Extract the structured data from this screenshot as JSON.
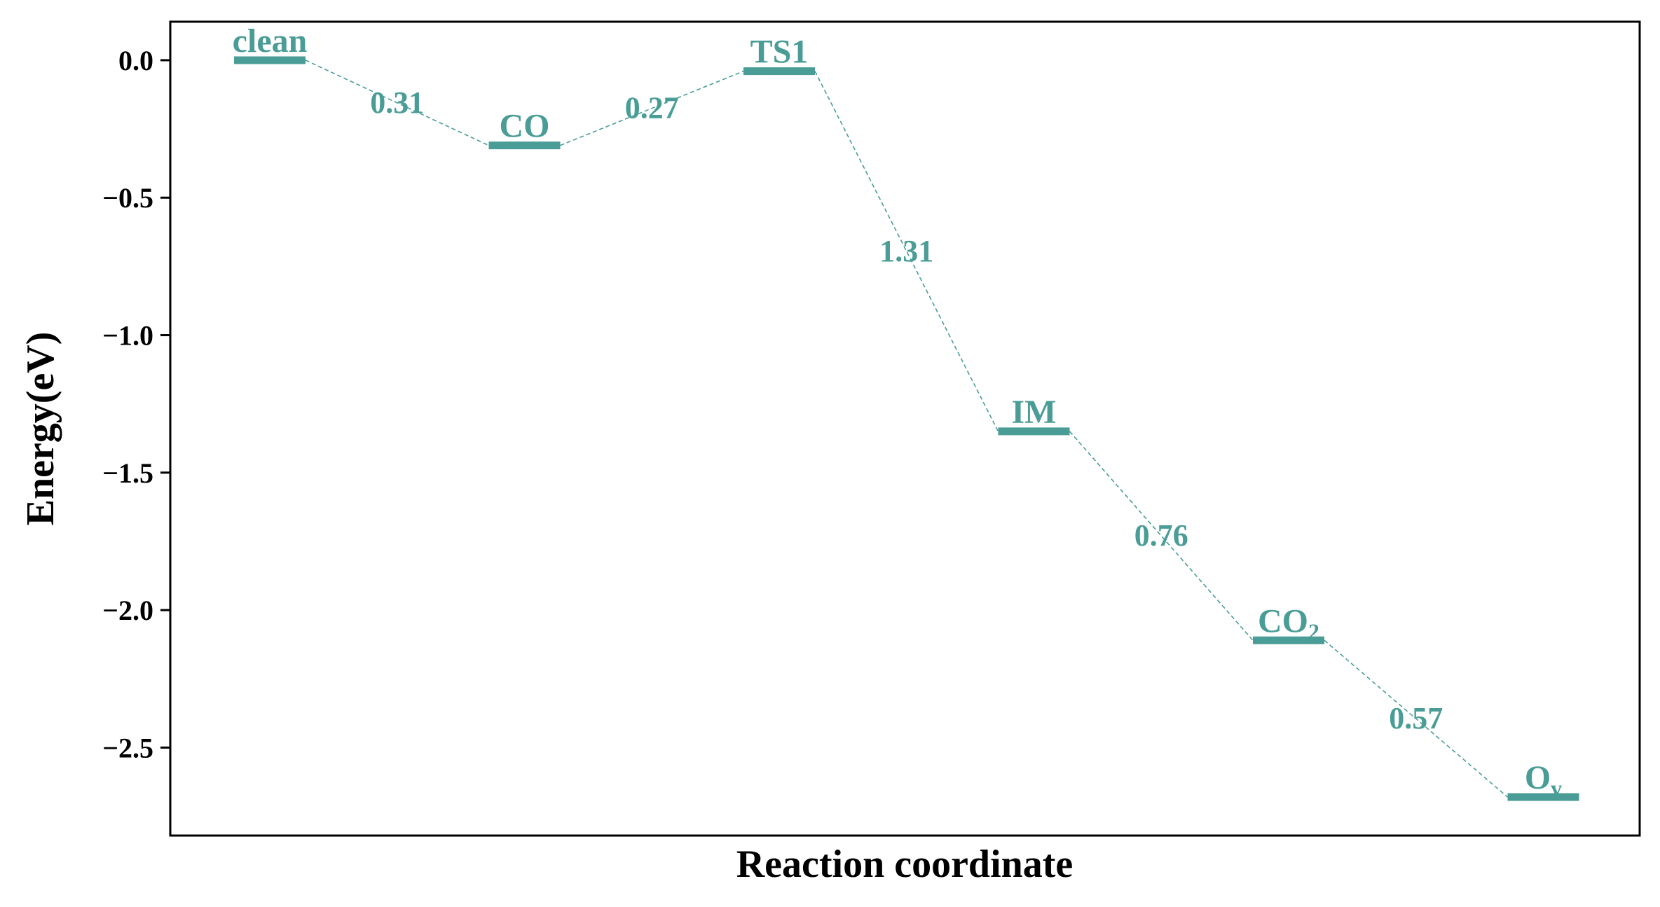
{
  "colors": {
    "accent": "#4a9d96",
    "axis": "#000000",
    "background": "#ffffff"
  },
  "chart_data": {
    "type": "line",
    "title": "",
    "xlabel": "Reaction coordinate",
    "ylabel": "Energy(eV)",
    "ylim": [
      -2.82,
      0.14
    ],
    "yticks": [
      0.0,
      -0.5,
      -1.0,
      -1.5,
      -2.0,
      -2.5
    ],
    "ytick_labels": [
      "0.0",
      "−0.5",
      "−1.0",
      "−1.5",
      "−2.0",
      "−2.5"
    ],
    "xticks_visible": false,
    "grid": false,
    "states": [
      {
        "label": "clean",
        "sub": "",
        "energy": 0.0
      },
      {
        "label": "CO",
        "sub": "",
        "energy": -0.31
      },
      {
        "label": "TS1",
        "sub": "",
        "energy": -0.04
      },
      {
        "label": "IM",
        "sub": "",
        "energy": -1.35
      },
      {
        "label": "CO",
        "sub": "2",
        "energy": -2.11
      },
      {
        "label": "O",
        "sub": "v",
        "energy": -2.68
      }
    ],
    "barriers": [
      {
        "label": "0.31",
        "from": 0,
        "to": 1
      },
      {
        "label": "0.27",
        "from": 1,
        "to": 2
      },
      {
        "label": "1.31",
        "from": 2,
        "to": 3
      },
      {
        "label": "0.76",
        "from": 3,
        "to": 4
      },
      {
        "label": "0.57",
        "from": 4,
        "to": 5
      }
    ]
  }
}
